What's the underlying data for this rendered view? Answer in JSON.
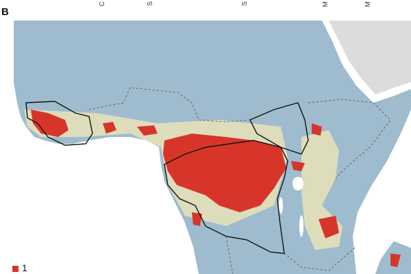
{
  "panel_label": "B",
  "header_fragments": [
    "C",
    "S",
    "S",
    "M",
    "M"
  ],
  "legend": {
    "label": "1"
  }
}
